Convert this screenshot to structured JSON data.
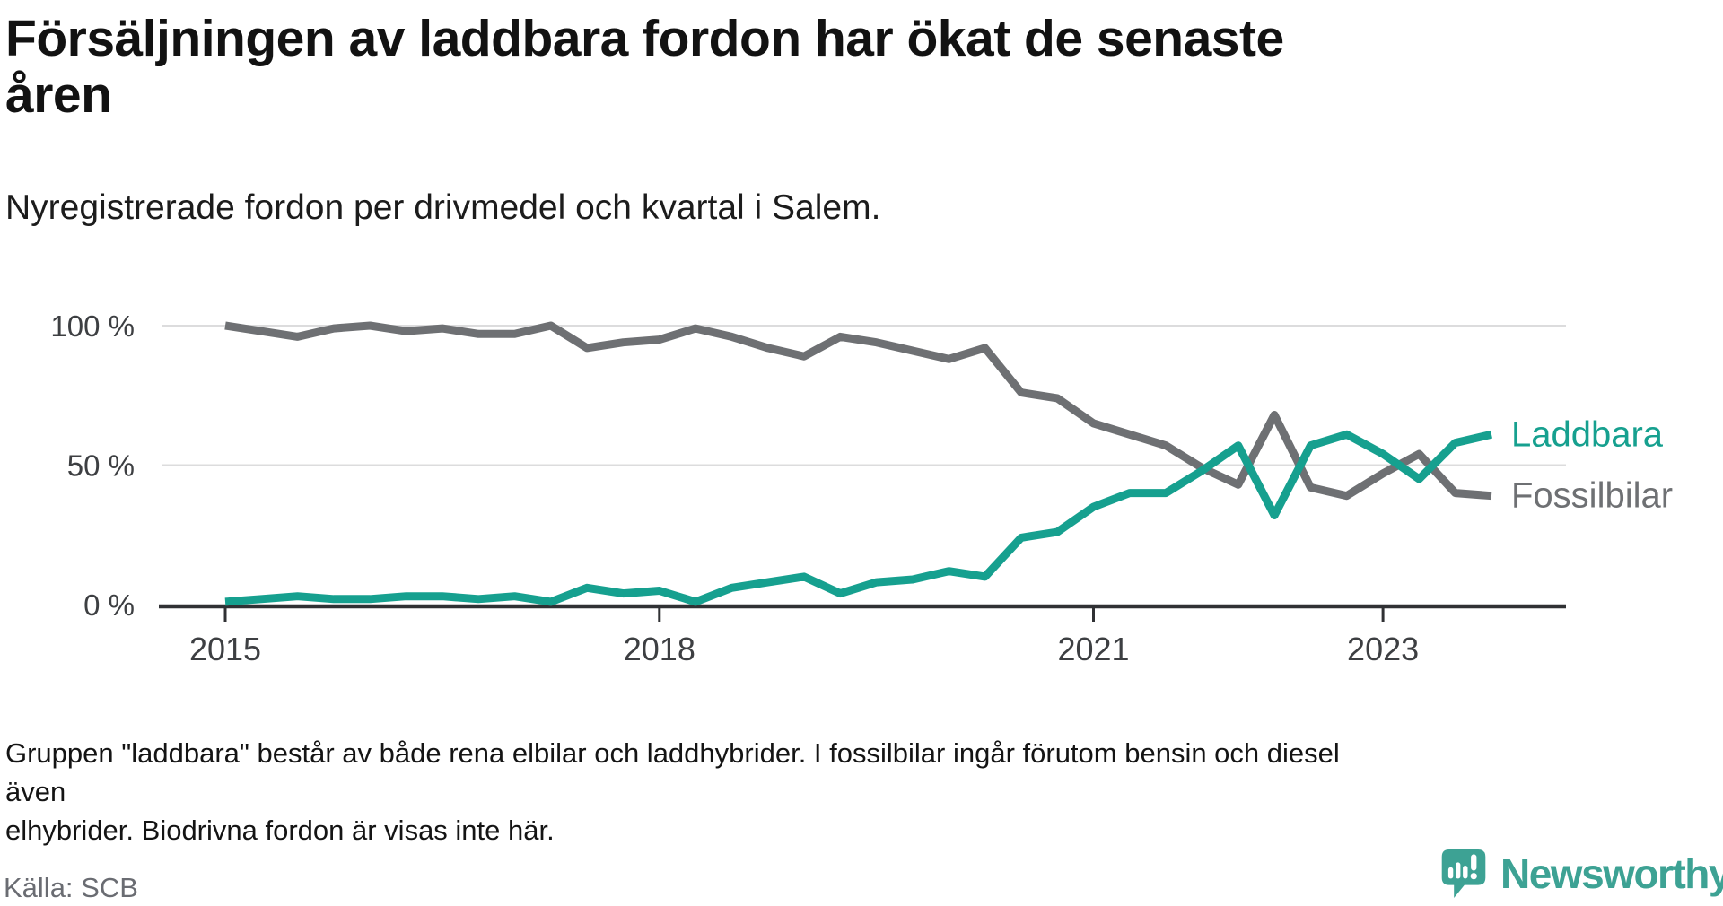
{
  "header": {
    "title": "Försäljningen av laddbara fordon har ökat de senaste\nåren",
    "subtitle": "Nyregistrerade fordon per drivmedel och kvartal i Salem."
  },
  "footer": {
    "footnote": "Gruppen \"laddbara\" består av både rena elbilar och laddhybrider. I fossilbilar ingår förutom bensin och diesel även\nelhybrider. Biodrivna fordon är visas inte här.",
    "source": "Källa: SCB"
  },
  "branding": {
    "wordmark": "Newsworthy",
    "logo_icon": "newsworthy-speech-bubble-bar-chart-icon",
    "brand_color": "#3da294"
  },
  "colors": {
    "laddbara": "#16a08f",
    "fossilbilar": "#6e7073",
    "axis": "#303134",
    "gridline": "#dcdcdd",
    "tick_text": "#3d3f42"
  },
  "chart_data": {
    "type": "line",
    "unit": "percent share of newly registered vehicles",
    "grid": "horizontal-only",
    "legend_position": "end-of-lines",
    "ylim": [
      0,
      100
    ],
    "x": [
      "2015Q1",
      "2015Q2",
      "2015Q3",
      "2015Q4",
      "2016Q1",
      "2016Q2",
      "2016Q3",
      "2016Q4",
      "2017Q1",
      "2017Q2",
      "2017Q3",
      "2017Q4",
      "2018Q1",
      "2018Q2",
      "2018Q3",
      "2018Q4",
      "2019Q1",
      "2019Q2",
      "2019Q3",
      "2019Q4",
      "2020Q1",
      "2020Q2",
      "2020Q3",
      "2020Q4",
      "2021Q1",
      "2021Q2",
      "2021Q3",
      "2021Q4",
      "2022Q1",
      "2022Q2",
      "2022Q3",
      "2022Q4",
      "2023Q1",
      "2023Q2",
      "2023Q3",
      "2023Q4"
    ],
    "series": [
      {
        "name": "Laddbara",
        "color": "#16a08f",
        "values": [
          1,
          2,
          3,
          2,
          2,
          3,
          3,
          2,
          3,
          1,
          6,
          4,
          5,
          1,
          6,
          8,
          10,
          4,
          8,
          9,
          12,
          10,
          24,
          26,
          35,
          40,
          40,
          48,
          57,
          32,
          57,
          61,
          54,
          45,
          58,
          61
        ]
      },
      {
        "name": "Fossilbilar",
        "color": "#6e7073",
        "values": [
          100,
          98,
          96,
          99,
          100,
          98,
          99,
          97,
          97,
          100,
          92,
          94,
          95,
          99,
          96,
          92,
          89,
          96,
          94,
          91,
          88,
          92,
          76,
          74,
          65,
          61,
          57,
          49,
          43,
          68,
          42,
          39,
          47,
          54,
          40,
          39
        ]
      }
    ],
    "yticks": [
      {
        "value": 100,
        "label": "100 %"
      },
      {
        "value": 50,
        "label": "50 %"
      },
      {
        "value": 0,
        "label": "0 %"
      }
    ],
    "xticks": [
      {
        "index": 0,
        "label": "2015"
      },
      {
        "index": 12,
        "label": "2018"
      },
      {
        "index": 24,
        "label": "2021"
      },
      {
        "index": 32,
        "label": "2023"
      }
    ]
  }
}
